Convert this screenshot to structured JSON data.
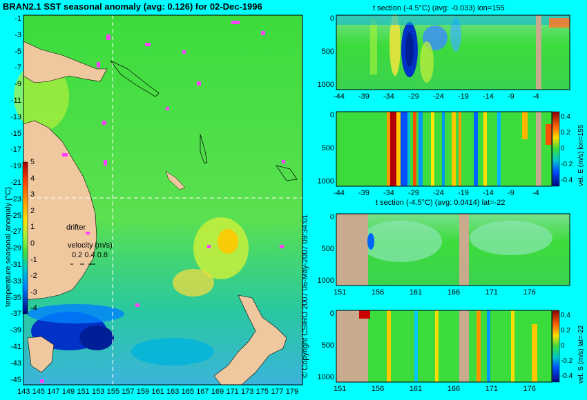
{
  "main_map": {
    "title": "BRAN2.1 SST seasonal anomaly (avg: 0.126) for 02-Dec-1996",
    "lat_ticks": [
      "-1",
      "-3",
      "-5",
      "-7",
      "-9",
      "-11",
      "-13",
      "-15",
      "-17",
      "-19",
      "-21",
      "-23",
      "-25",
      "-27",
      "-29",
      "-31",
      "-33",
      "-35",
      "-37",
      "-39",
      "-41",
      "-43",
      "-45"
    ],
    "lon_ticks": [
      "143",
      "145",
      "147",
      "149",
      "151",
      "153",
      "155",
      "157",
      "159",
      "161",
      "163",
      "165",
      "167",
      "169",
      "171",
      "173",
      "175",
      "177",
      "179"
    ],
    "colorbar": {
      "label": "temperature seasonal anomaly (°C)",
      "ticks": [
        "5",
        "4",
        "3",
        "2",
        "1",
        "0",
        "-1",
        "-2",
        "-3",
        "-4"
      ],
      "colors": [
        "#c80000",
        "#ff3c00",
        "#ff9600",
        "#ffdc00",
        "#b4ff3c",
        "#3cdc3c",
        "#00c8c8",
        "#0082ff",
        "#0032c8",
        "#000080"
      ]
    },
    "drifter_label": "drifter",
    "velocity_label": "velocity (m/s)",
    "velocity_scale": "0.2 0.4 0.8",
    "land_color": "#f0c8a0",
    "drifter_color": "#ff40ff"
  },
  "copyright": "© Copyright CSIRO 2007   06-May-2007 09:34:01",
  "panels": [
    {
      "title": "t section (-4.5°C) (avg: -0.033) lon=155",
      "x_ticks": [
        "-44",
        "-39",
        "-34",
        "-29",
        "-24",
        "-19",
        "-14",
        "-9",
        "-4"
      ],
      "y_ticks": [
        "0",
        "500",
        "1000"
      ],
      "side_label": ""
    },
    {
      "title": "",
      "x_ticks": [
        "-44",
        "-39",
        "-34",
        "-29",
        "-24",
        "-19",
        "-14",
        "-9",
        "-4"
      ],
      "y_ticks": [
        "0",
        "500",
        "1000"
      ],
      "side_label": "vel. E (m/s) lon=155",
      "colorbar_ticks": [
        "0.4",
        "0.2",
        "0",
        "-0.2",
        "-0.4"
      ]
    },
    {
      "title": "t section (-4.5°C) (avg: 0.0414) lat=-22",
      "x_ticks": [
        "151",
        "156",
        "161",
        "166",
        "171",
        "176"
      ],
      "y_ticks": [
        "0",
        "500",
        "1000"
      ],
      "side_label": ""
    },
    {
      "title": "",
      "x_ticks": [
        "151",
        "156",
        "161",
        "166",
        "171",
        "176"
      ],
      "y_ticks": [
        "0",
        "500",
        "1000"
      ],
      "side_label": "vel. S (m/s) lat=-22",
      "colorbar_ticks": [
        "0.4",
        "0.2",
        "0",
        "-0.2",
        "-0.4"
      ]
    }
  ]
}
